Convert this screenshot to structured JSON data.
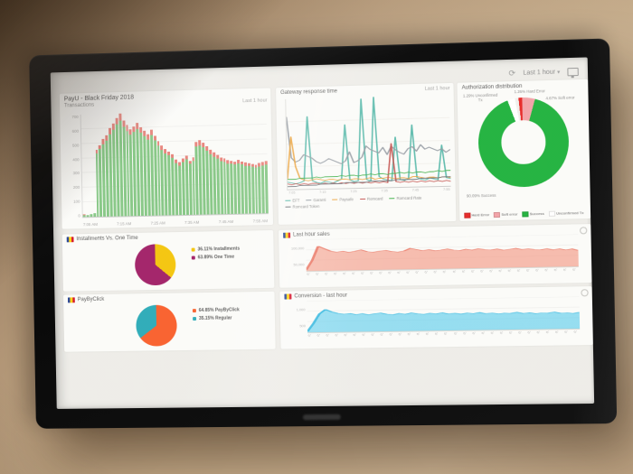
{
  "topbar": {
    "time_range": "Last 1 hour"
  },
  "colors": {
    "wall": "#b29676",
    "bezel": "#0f0f0f",
    "screen_bg": "#edece8",
    "tile_bg": "#fbfbf9",
    "bar_green": "#85c585",
    "bar_error": "#e4837b",
    "donut_success": "#1fae3d",
    "donut_soft": "#f0a1a6",
    "donut_hard": "#e02424",
    "donut_unconfirmed": "#efefed",
    "pie_yellow": "#f1c40f",
    "pie_purple": "#9b1d63",
    "pie_orange": "#f45d2b",
    "pie_teal": "#2ba8b5",
    "sales_salmon": "#ef8f7c",
    "conversion_cyan": "#52c6ea"
  },
  "chart_data": [
    {
      "id": "transactions",
      "type": "bar",
      "title": "PayU - Black Friday 2018",
      "subtitle": "Transactions",
      "time_range": "Last 1 hour",
      "ymax": 700,
      "ylabels": [
        "700",
        "600",
        "500",
        "400",
        "300",
        "200",
        "100",
        "0"
      ],
      "xticklabels": [
        "7:05 AM",
        "7:15 AM",
        "7:25 AM",
        "7:35 AM",
        "7:45 AM",
        "7:55 AM"
      ],
      "series": [
        {
          "name": "Transactions",
          "color": "#85c585",
          "values": [
            15,
            12,
            18,
            22,
            430,
            460,
            495,
            520,
            560,
            590,
            625,
            650,
            610,
            580,
            555,
            570,
            590,
            565,
            540,
            520,
            545,
            510,
            475,
            445,
            420,
            405,
            390,
            355,
            335,
            360,
            375,
            345,
            365,
            460,
            470,
            455,
            430,
            410,
            392,
            375,
            360,
            352,
            344,
            338,
            332,
            340,
            332,
            324,
            320,
            314,
            310,
            318,
            325,
            330
          ]
        },
        {
          "name": "Errors",
          "color": "#e4837b",
          "values": [
            3,
            2,
            3,
            4,
            28,
            30,
            34,
            36,
            40,
            42,
            46,
            50,
            44,
            40,
            38,
            40,
            42,
            40,
            36,
            35,
            38,
            34,
            32,
            30,
            28,
            27,
            26,
            24,
            22,
            24,
            26,
            23,
            25,
            32,
            33,
            32,
            30,
            28,
            27,
            26,
            24,
            24,
            23,
            22,
            22,
            23,
            22,
            21,
            21,
            20,
            20,
            21,
            22,
            22
          ]
        }
      ]
    },
    {
      "id": "gateway-response",
      "type": "line",
      "title": "Gateway response time",
      "time_range": "Last 1 hour",
      "ylim": [
        0,
        100
      ],
      "ylabels": [
        "500",
        "400",
        "300",
        "200",
        "100",
        "0"
      ],
      "xticklabels": [
        "7:05",
        "7:15",
        "7:25",
        "7:35",
        "7:45",
        "7:55"
      ],
      "series": [
        {
          "name": "EFT",
          "color": "#4fb3a5",
          "values": [
            8,
            7,
            6,
            7,
            9,
            80,
            9,
            7,
            6,
            8,
            7,
            6,
            8,
            10,
            70,
            9,
            7,
            8,
            98,
            9,
            7,
            100,
            12,
            9,
            8,
            7,
            55,
            8,
            7,
            9,
            68,
            10,
            8,
            7,
            9,
            8,
            7,
            45,
            9,
            8
          ]
        },
        {
          "name": "Garanti",
          "color": "#9097a0",
          "values": [
            80,
            35,
            30,
            32,
            38,
            36,
            34,
            30,
            28,
            30,
            33,
            31,
            29,
            27,
            30,
            40,
            28,
            30,
            34,
            46,
            42,
            40,
            38,
            44,
            36,
            45,
            41,
            38,
            36,
            42,
            44,
            39,
            46,
            41,
            43,
            41,
            39,
            41,
            37,
            40
          ]
        },
        {
          "name": "Paysafe",
          "color": "#e8a13c",
          "values": [
            12,
            58,
            25,
            12,
            10,
            9,
            10,
            11,
            10,
            9,
            10,
            10,
            9,
            10,
            10,
            9,
            10,
            10,
            9,
            10,
            11,
            9,
            10,
            10,
            11,
            10,
            9,
            10,
            10,
            9,
            11,
            11,
            10,
            9,
            10,
            10,
            9,
            10,
            10,
            9
          ]
        },
        {
          "name": "Romcard",
          "color": "#c0504d",
          "values": [
            6,
            5,
            6,
            5,
            6,
            5,
            6,
            6,
            5,
            6,
            5,
            6,
            5,
            6,
            5,
            6,
            5,
            6,
            5,
            6,
            5,
            6,
            5,
            6,
            5,
            48,
            6,
            5,
            6,
            5,
            6,
            5,
            6,
            5,
            6,
            5,
            6,
            5,
            6,
            5
          ]
        },
        {
          "name": "Romcard Rate",
          "color": "#3fae49",
          "values": [
            11,
            11,
            11,
            12,
            12,
            12,
            12,
            13,
            12,
            13,
            13,
            13,
            13,
            14,
            13,
            14,
            14,
            13,
            14,
            14,
            15,
            14,
            15,
            15,
            14,
            15,
            15,
            16,
            15,
            16,
            15,
            16,
            16,
            15,
            16,
            16,
            17,
            16,
            17,
            17
          ]
        },
        {
          "name": "Romcard Token",
          "color": "#6a6f76",
          "values": [
            3,
            3,
            3,
            4,
            4,
            4,
            4,
            4,
            5,
            5,
            5,
            5,
            5,
            5,
            6,
            6,
            6,
            6,
            6,
            6,
            7,
            7,
            7,
            7,
            7,
            7,
            8,
            8,
            8,
            8,
            8,
            8,
            9,
            9,
            9,
            9,
            9,
            10,
            10,
            10
          ]
        }
      ]
    },
    {
      "id": "authorization-distribution",
      "type": "donut",
      "title": "Authorization distribution",
      "start_angle": -10,
      "slices": [
        {
          "label": "Unconfirmed Tx",
          "pct": 1.29,
          "color": "#efefed"
        },
        {
          "label": "Hard Error",
          "pct": 1.26,
          "color": "#e02424"
        },
        {
          "label": "Soft error",
          "pct": 4.67,
          "color": "#f0a1a6"
        },
        {
          "label": "Success",
          "pct": 90.09,
          "color": "#1fae3d"
        }
      ],
      "callouts": [
        "1.29% Unconfirmed Tx",
        "1.26% Hard Error",
        "4.67% Soft error",
        "90.09% Success"
      ],
      "legend": [
        {
          "text": "Hard Error",
          "color": "#e02424"
        },
        {
          "text": "Soft error",
          "color": "#f0a1a6"
        },
        {
          "text": "Success",
          "color": "#1fae3d"
        },
        {
          "text": "Unconfirmed Tx",
          "color": "#ffffff"
        }
      ]
    },
    {
      "id": "installments-vs-onetime",
      "type": "pie",
      "title": "Installments Vs. One Time",
      "start_angle": 0,
      "slices": [
        {
          "label": "Installments",
          "pct": 36.11,
          "color": "#f1c40f"
        },
        {
          "label": "One Time",
          "pct": 63.89,
          "color": "#9b1d63"
        }
      ],
      "legend": [
        {
          "text": "36.11% Installments",
          "color": "#f1c40f"
        },
        {
          "text": "63.89% One Time",
          "color": "#9b1d63"
        }
      ]
    },
    {
      "id": "last-hour-sales",
      "type": "area",
      "title": "Last hour sales",
      "color": "#ef8f7c",
      "stroke": "#e4705e",
      "ylabels": [
        "100,000",
        "50,000"
      ],
      "xticklabels": [
        "07:00",
        "07:02",
        "07:04",
        "07:06",
        "07:08",
        "07:10",
        "07:12",
        "07:14",
        "07:16",
        "07:18",
        "07:20",
        "07:22",
        "07:24",
        "07:26",
        "07:28",
        "07:30",
        "07:32",
        "07:34",
        "07:36",
        "07:38",
        "07:40",
        "07:42",
        "07:44",
        "07:46",
        "07:48",
        "07:50",
        "07:52",
        "07:54",
        "07:56",
        "07:58"
      ],
      "values": [
        4,
        34,
        78,
        70,
        62,
        58,
        61,
        57,
        60,
        64,
        58,
        56,
        59,
        61,
        57,
        55,
        58,
        66,
        62,
        58,
        61,
        57,
        59,
        62,
        58,
        56,
        60,
        57,
        61,
        58,
        56,
        59,
        55,
        57,
        60,
        56,
        58,
        55,
        54,
        57,
        53,
        56,
        52,
        55,
        50
      ]
    },
    {
      "id": "paybyclick",
      "type": "pie",
      "title": "PayByClick",
      "start_angle": 0,
      "slices": [
        {
          "label": "PayByClick",
          "pct": 64.85,
          "color": "#f45d2b"
        },
        {
          "label": "Regular",
          "pct": 35.15,
          "color": "#2ba8b5"
        }
      ],
      "legend": [
        {
          "text": "64.85% PayByClick",
          "color": "#f45d2b"
        },
        {
          "text": "35.15% Regular",
          "color": "#2ba8b5"
        }
      ]
    },
    {
      "id": "conversion-last-hour",
      "type": "area",
      "title": "Conversion - last hour",
      "color": "#52c6ea",
      "stroke": "#2fb3dc",
      "ylabels": [
        "1,000",
        "500"
      ],
      "xticklabels": [
        "07:00",
        "07:02",
        "07:04",
        "07:06",
        "07:08",
        "07:10",
        "07:12",
        "07:14",
        "07:16",
        "07:18",
        "07:20",
        "07:22",
        "07:24",
        "07:26",
        "07:28",
        "07:30",
        "07:32",
        "07:34",
        "07:36",
        "07:38",
        "07:40",
        "07:42",
        "07:44",
        "07:46",
        "07:48",
        "07:50",
        "07:52",
        "07:54",
        "07:56",
        "07:58"
      ],
      "values": [
        3,
        28,
        58,
        72,
        64,
        59,
        56,
        58,
        54,
        57,
        53,
        56,
        58,
        54,
        52,
        56,
        53,
        57,
        54,
        52,
        55,
        53,
        56,
        52,
        54,
        51,
        54,
        52,
        55,
        51,
        53,
        50,
        52,
        51,
        54,
        50,
        52,
        49,
        51,
        50,
        53,
        49,
        50,
        48,
        51
      ]
    }
  ]
}
